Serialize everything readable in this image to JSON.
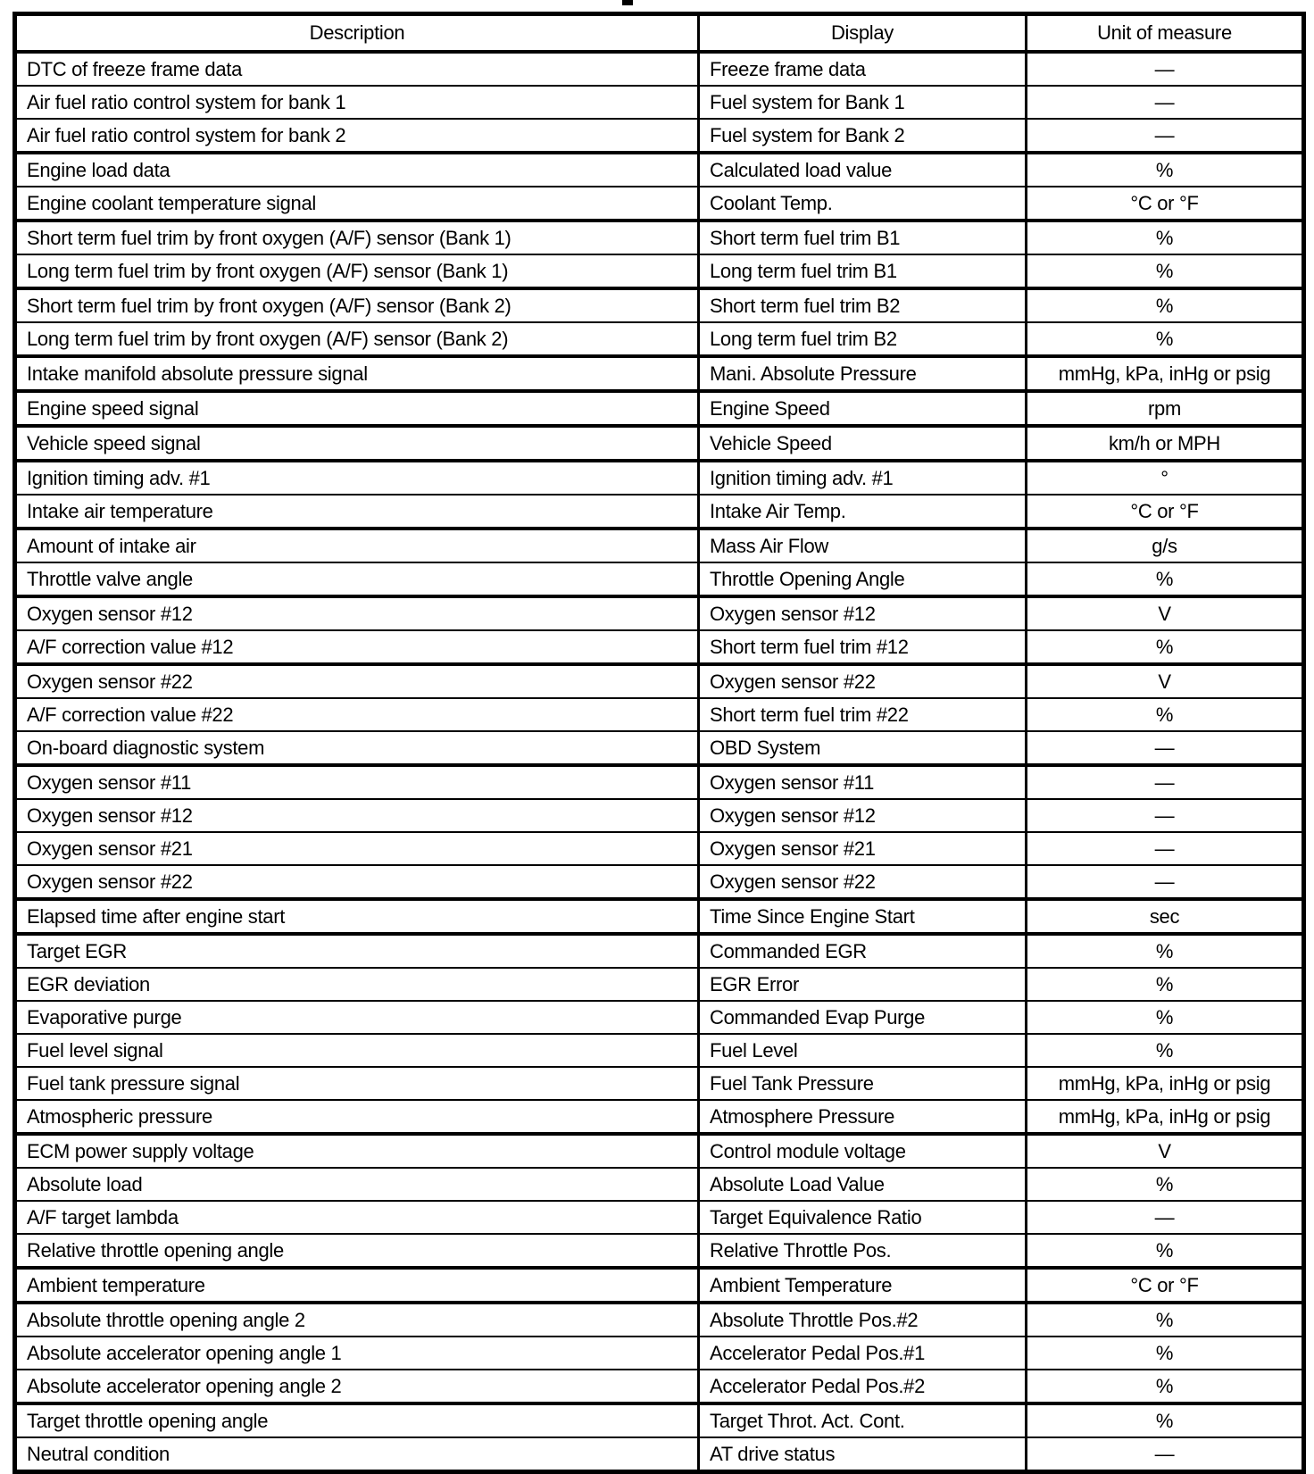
{
  "table": {
    "headers": [
      "Description",
      "Display",
      "Unit of measure"
    ],
    "rows": [
      {
        "description": "DTC of freeze frame data",
        "display": "Freeze frame data",
        "unit": "—"
      },
      {
        "description": "Air fuel ratio control system for bank 1",
        "display": "Fuel system for Bank 1",
        "unit": "—"
      },
      {
        "description": "Air fuel ratio control system for bank 2",
        "display": "Fuel system for Bank 2",
        "unit": "—"
      },
      {
        "description": "Engine load data",
        "display": "Calculated load value",
        "unit": "%"
      },
      {
        "description": "Engine coolant temperature signal",
        "display": "Coolant Temp.",
        "unit": "°C or °F"
      },
      {
        "description": "Short term fuel trim by front oxygen (A/F) sensor (Bank 1)",
        "display": "Short term fuel trim B1",
        "unit": "%"
      },
      {
        "description": "Long term fuel trim by front oxygen (A/F) sensor (Bank 1)",
        "display": "Long term fuel trim B1",
        "unit": "%"
      },
      {
        "description": "Short term fuel trim by front oxygen (A/F) sensor (Bank 2)",
        "display": "Short term fuel trim B2",
        "unit": "%"
      },
      {
        "description": "Long term fuel trim by front oxygen (A/F) sensor (Bank 2)",
        "display": "Long term fuel trim B2",
        "unit": "%"
      },
      {
        "description": "Intake manifold absolute pressure signal",
        "display": "Mani. Absolute Pressure",
        "unit": "mmHg, kPa, inHg or psig"
      },
      {
        "description": "Engine speed signal",
        "display": "Engine Speed",
        "unit": "rpm"
      },
      {
        "description": "Vehicle speed signal",
        "display": "Vehicle Speed",
        "unit": "km/h or MPH"
      },
      {
        "description": "Ignition timing adv. #1",
        "display": "Ignition timing adv. #1",
        "unit": "°"
      },
      {
        "description": "Intake air temperature",
        "display": "Intake Air Temp.",
        "unit": "°C or °F"
      },
      {
        "description": "Amount of intake air",
        "display": "Mass Air Flow",
        "unit": "g/s"
      },
      {
        "description": "Throttle valve angle",
        "display": "Throttle Opening Angle",
        "unit": "%"
      },
      {
        "description": "Oxygen sensor #12",
        "display": "Oxygen sensor #12",
        "unit": "V"
      },
      {
        "description": "A/F correction value #12",
        "display": "Short term fuel trim #12",
        "unit": "%"
      },
      {
        "description": "Oxygen sensor #22",
        "display": "Oxygen sensor #22",
        "unit": "V"
      },
      {
        "description": "A/F correction value #22",
        "display": "Short term fuel trim #22",
        "unit": "%"
      },
      {
        "description": "On-board diagnostic system",
        "display": "OBD System",
        "unit": "—"
      },
      {
        "description": "Oxygen sensor #11",
        "display": "Oxygen sensor #11",
        "unit": "—"
      },
      {
        "description": "Oxygen sensor #12",
        "display": "Oxygen sensor #12",
        "unit": "—"
      },
      {
        "description": "Oxygen sensor #21",
        "display": "Oxygen sensor #21",
        "unit": "—"
      },
      {
        "description": "Oxygen sensor #22",
        "display": "Oxygen sensor #22",
        "unit": "—"
      },
      {
        "description": "Elapsed time after engine start",
        "display": "Time Since Engine Start",
        "unit": "sec"
      },
      {
        "description": "Target EGR",
        "display": "Commanded EGR",
        "unit": "%"
      },
      {
        "description": "EGR deviation",
        "display": "EGR Error",
        "unit": "%"
      },
      {
        "description": "Evaporative purge",
        "display": "Commanded Evap Purge",
        "unit": "%"
      },
      {
        "description": "Fuel level signal",
        "display": "Fuel Level",
        "unit": "%"
      },
      {
        "description": "Fuel tank pressure signal",
        "display": "Fuel Tank Pressure",
        "unit": "mmHg, kPa, inHg or psig"
      },
      {
        "description": "Atmospheric pressure",
        "display": "Atmosphere Pressure",
        "unit": "mmHg, kPa, inHg or psig"
      },
      {
        "description": "ECM power supply voltage",
        "display": "Control module voltage",
        "unit": "V"
      },
      {
        "description": "Absolute load",
        "display": "Absolute Load Value",
        "unit": "%"
      },
      {
        "description": "A/F target lambda",
        "display": "Target Equivalence Ratio",
        "unit": "—"
      },
      {
        "description": "Relative throttle opening angle",
        "display": "Relative Throttle Pos.",
        "unit": "%"
      },
      {
        "description": "Ambient temperature",
        "display": "Ambient Temperature",
        "unit": "°C or °F"
      },
      {
        "description": "Absolute throttle opening angle 2",
        "display": "Absolute Throttle Pos.#2",
        "unit": "%"
      },
      {
        "description": "Absolute accelerator opening angle 1",
        "display": "Accelerator Pedal Pos.#1",
        "unit": "%"
      },
      {
        "description": "Absolute accelerator opening angle 2",
        "display": "Accelerator Pedal Pos.#2",
        "unit": "%"
      },
      {
        "description": "Target throttle opening angle",
        "display": "Target Throt. Act. Cont.",
        "unit": "%"
      },
      {
        "description": "Neutral condition",
        "display": "AT drive status",
        "unit": "—"
      }
    ]
  }
}
